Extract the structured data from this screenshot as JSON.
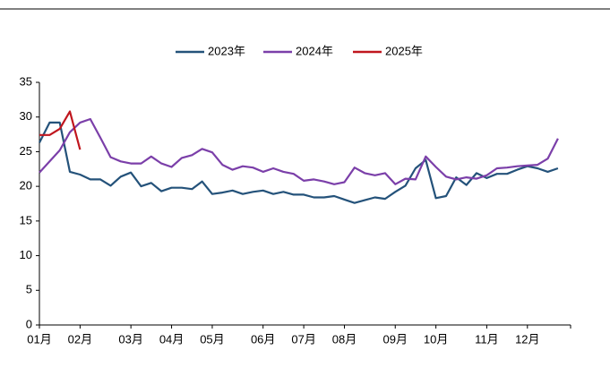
{
  "chart_data": {
    "type": "line",
    "categories": [
      "01月",
      null,
      null,
      null,
      "02月",
      null,
      null,
      null,
      null,
      "03月",
      null,
      null,
      null,
      "04月",
      null,
      null,
      null,
      "05月",
      null,
      null,
      null,
      null,
      "06月",
      null,
      null,
      null,
      "07月",
      null,
      null,
      null,
      "08月",
      null,
      null,
      null,
      null,
      "09月",
      null,
      null,
      null,
      "10月",
      null,
      null,
      null,
      null,
      "11月",
      null,
      null,
      null,
      "12月",
      null,
      null,
      null,
      null
    ],
    "series": [
      {
        "name": "2023年",
        "color": "#24527a",
        "values": [
          26.3,
          29.2,
          29.2,
          22.1,
          21.7,
          21.0,
          21.0,
          20.1,
          21.4,
          22.0,
          20.0,
          20.5,
          19.3,
          19.8,
          19.8,
          19.6,
          20.7,
          18.9,
          19.1,
          19.4,
          18.9,
          19.2,
          19.4,
          18.9,
          19.2,
          18.8,
          18.8,
          18.4,
          18.4,
          18.6,
          18.1,
          17.6,
          18.0,
          18.4,
          18.2,
          19.2,
          20.1,
          22.6,
          23.8,
          18.3,
          18.6,
          21.3,
          20.2,
          21.9,
          21.2,
          21.8,
          21.8,
          22.4,
          22.9,
          22.6,
          22.1,
          22.6,
          null
        ]
      },
      {
        "name": "2024年",
        "color": "#7b3fa9",
        "values": [
          22.0,
          23.6,
          25.2,
          27.8,
          29.2,
          29.7,
          27.0,
          24.2,
          23.6,
          23.3,
          23.3,
          24.3,
          23.3,
          22.8,
          24.1,
          24.5,
          25.4,
          24.9,
          23.1,
          22.4,
          22.9,
          22.7,
          22.1,
          22.6,
          22.1,
          21.8,
          20.8,
          21.0,
          20.7,
          20.3,
          20.6,
          22.7,
          21.9,
          21.6,
          21.9,
          20.3,
          21.1,
          21.0,
          24.3,
          22.8,
          21.4,
          21.0,
          21.3,
          21.1,
          21.6,
          22.6,
          22.7,
          22.9,
          23.0,
          23.1,
          24.0,
          26.9,
          null
        ]
      },
      {
        "name": "2025年",
        "color": "#c0161e",
        "values": [
          27.4,
          27.4,
          28.3,
          30.8,
          25.3,
          null,
          null,
          null,
          null,
          null,
          null,
          null,
          null,
          null,
          null,
          null,
          null,
          null,
          null,
          null,
          null,
          null,
          null,
          null,
          null,
          null,
          null,
          null,
          null,
          null,
          null,
          null,
          null,
          null,
          null,
          null,
          null,
          null,
          null,
          null,
          null,
          null,
          null,
          null,
          null,
          null,
          null,
          null,
          null,
          null,
          null,
          null,
          null
        ]
      }
    ],
    "ylim": [
      0,
      35
    ],
    "yticks": [
      0,
      5,
      10,
      15,
      20,
      25,
      30,
      35
    ]
  }
}
